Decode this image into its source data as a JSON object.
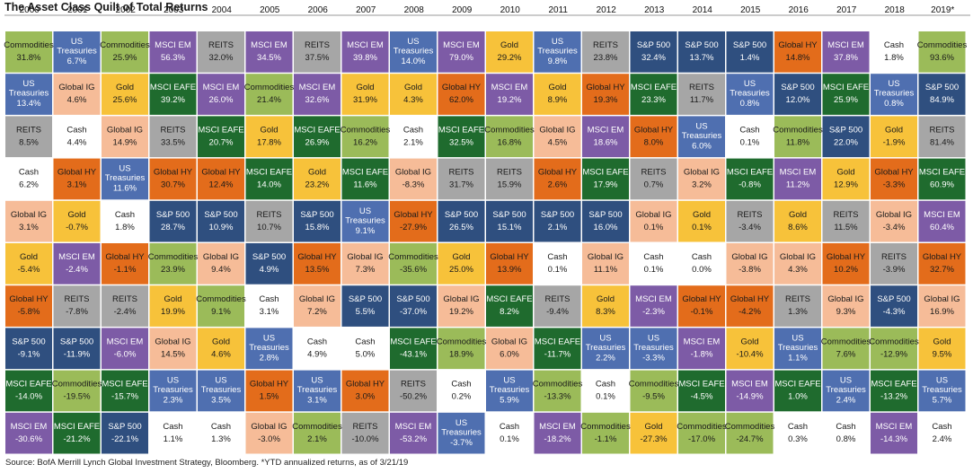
{
  "title": "The Asset Class Quilt of Total Returns",
  "source": "Source: BofA Merrill Lynch Global Investment Strategy, Bloomberg. *YTD annualized returns, as of 3/21/19",
  "colors": {
    "Commodities": "#9bbb59",
    "US Treasuries": "#4f6fb0",
    "MSCI EM": "#7d5ba6",
    "REITS": "#a6a6a6",
    "Gold": "#f7c23a",
    "Cash": "#ffffff",
    "Global HY": "#e36c1b",
    "Global IG": "#f6bc98",
    "MSCI EAFE": "#1f6b2e",
    "S&P 500": "#2f4f7f"
  },
  "text_colors": {
    "Commodities": "#1a1a1a",
    "US Treasuries": "#ffffff",
    "MSCI EM": "#ffffff",
    "REITS": "#1a1a1a",
    "Gold": "#1a1a1a",
    "Cash": "#1a1a1a",
    "Global HY": "#1a1a1a",
    "Global IG": "#1a1a1a",
    "MSCI EAFE": "#ffffff",
    "S&P 500": "#ffffff"
  },
  "chart_data": {
    "type": "table",
    "title": "The Asset Class Quilt of Total Returns",
    "years": [
      "2000",
      "2001",
      "2002",
      "2003",
      "2004",
      "2005",
      "2006",
      "2007",
      "2008",
      "2009",
      "2010",
      "2011",
      "2012",
      "2013",
      "2014",
      "2015",
      "2016",
      "2017",
      "2018",
      "2019*"
    ],
    "columns": [
      [
        [
          "Commodities",
          "31.8%"
        ],
        [
          "US Treasuries",
          "13.4%"
        ],
        [
          "REITS",
          "8.5%"
        ],
        [
          "Cash",
          "6.2%"
        ],
        [
          "Global IG",
          "3.1%"
        ],
        [
          "Gold",
          "-5.4%"
        ],
        [
          "Global HY",
          "-5.8%"
        ],
        [
          "S&P 500",
          "-9.1%"
        ],
        [
          "MSCI EAFE",
          "-14.0%"
        ],
        [
          "MSCI EM",
          "-30.6%"
        ]
      ],
      [
        [
          "US Treasuries",
          "6.7%"
        ],
        [
          "Global IG",
          "4.6%"
        ],
        [
          "Cash",
          "4.4%"
        ],
        [
          "Global HY",
          "3.1%"
        ],
        [
          "Gold",
          "-0.7%"
        ],
        [
          "MSCI EM",
          "-2.4%"
        ],
        [
          "REITS",
          "-7.8%"
        ],
        [
          "S&P 500",
          "-11.9%"
        ],
        [
          "Commodities",
          "-19.5%"
        ],
        [
          "MSCI EAFE",
          "-21.2%"
        ]
      ],
      [
        [
          "Commodities",
          "25.9%"
        ],
        [
          "Gold",
          "25.6%"
        ],
        [
          "Global IG",
          "14.9%"
        ],
        [
          "US Treasuries",
          "11.6%"
        ],
        [
          "Cash",
          "1.8%"
        ],
        [
          "Global HY",
          "-1.1%"
        ],
        [
          "REITS",
          "-2.4%"
        ],
        [
          "MSCI EM",
          "-6.0%"
        ],
        [
          "MSCI EAFE",
          "-15.7%"
        ],
        [
          "S&P 500",
          "-22.1%"
        ]
      ],
      [
        [
          "MSCI EM",
          "56.3%"
        ],
        [
          "MSCI EAFE",
          "39.2%"
        ],
        [
          "REITS",
          "33.5%"
        ],
        [
          "Global HY",
          "30.7%"
        ],
        [
          "S&P 500",
          "28.7%"
        ],
        [
          "Commodities",
          "23.9%"
        ],
        [
          "Gold",
          "19.9%"
        ],
        [
          "Global IG",
          "14.5%"
        ],
        [
          "US Treasuries",
          "2.3%"
        ],
        [
          "Cash",
          "1.1%"
        ]
      ],
      [
        [
          "REITS",
          "32.0%"
        ],
        [
          "MSCI EM",
          "26.0%"
        ],
        [
          "MSCI EAFE",
          "20.7%"
        ],
        [
          "Global HY",
          "12.4%"
        ],
        [
          "S&P 500",
          "10.9%"
        ],
        [
          "Global IG",
          "9.4%"
        ],
        [
          "Commodities",
          "9.1%"
        ],
        [
          "Gold",
          "4.6%"
        ],
        [
          "US Treasuries",
          "3.5%"
        ],
        [
          "Cash",
          "1.3%"
        ]
      ],
      [
        [
          "MSCI EM",
          "34.5%"
        ],
        [
          "Commodities",
          "21.4%"
        ],
        [
          "Gold",
          "17.8%"
        ],
        [
          "MSCI EAFE",
          "14.0%"
        ],
        [
          "REITS",
          "10.7%"
        ],
        [
          "S&P 500",
          "4.9%"
        ],
        [
          "Cash",
          "3.1%"
        ],
        [
          "US Treasuries",
          "2.8%"
        ],
        [
          "Global HY",
          "1.5%"
        ],
        [
          "Global IG",
          "-3.0%"
        ]
      ],
      [
        [
          "REITS",
          "37.5%"
        ],
        [
          "MSCI EM",
          "32.6%"
        ],
        [
          "MSCI EAFE",
          "26.9%"
        ],
        [
          "Gold",
          "23.2%"
        ],
        [
          "S&P 500",
          "15.8%"
        ],
        [
          "Global HY",
          "13.5%"
        ],
        [
          "Global IG",
          "7.2%"
        ],
        [
          "Cash",
          "4.9%"
        ],
        [
          "US Treasuries",
          "3.1%"
        ],
        [
          "Commodities",
          "2.1%"
        ]
      ],
      [
        [
          "MSCI EM",
          "39.8%"
        ],
        [
          "Gold",
          "31.9%"
        ],
        [
          "Commodities",
          "16.2%"
        ],
        [
          "MSCI EAFE",
          "11.6%"
        ],
        [
          "US Treasuries",
          "9.1%"
        ],
        [
          "Global IG",
          "7.3%"
        ],
        [
          "S&P 500",
          "5.5%"
        ],
        [
          "Cash",
          "5.0%"
        ],
        [
          "Global HY",
          "3.0%"
        ],
        [
          "REITS",
          "-10.0%"
        ]
      ],
      [
        [
          "US Treasuries",
          "14.0%"
        ],
        [
          "Gold",
          "4.3%"
        ],
        [
          "Cash",
          "2.1%"
        ],
        [
          "Global IG",
          "-8.3%"
        ],
        [
          "Global HY",
          "-27.9%"
        ],
        [
          "Commodities",
          "-35.6%"
        ],
        [
          "S&P 500",
          "-37.0%"
        ],
        [
          "MSCI EAFE",
          "-43.1%"
        ],
        [
          "REITS",
          "-50.2%"
        ],
        [
          "MSCI EM",
          "-53.2%"
        ]
      ],
      [
        [
          "MSCI EM",
          "79.0%"
        ],
        [
          "Global HY",
          "62.0%"
        ],
        [
          "MSCI EAFE",
          "32.5%"
        ],
        [
          "REITS",
          "31.7%"
        ],
        [
          "S&P 500",
          "26.5%"
        ],
        [
          "Gold",
          "25.0%"
        ],
        [
          "Global IG",
          "19.2%"
        ],
        [
          "Commodities",
          "18.9%"
        ],
        [
          "Cash",
          "0.2%"
        ],
        [
          "US Treasuries",
          "-3.7%"
        ]
      ],
      [
        [
          "Gold",
          "29.2%"
        ],
        [
          "MSCI EM",
          "19.2%"
        ],
        [
          "Commodities",
          "16.8%"
        ],
        [
          "REITS",
          "15.9%"
        ],
        [
          "S&P 500",
          "15.1%"
        ],
        [
          "Global HY",
          "13.9%"
        ],
        [
          "MSCI EAFE",
          "8.2%"
        ],
        [
          "Global IG",
          "6.0%"
        ],
        [
          "US Treasuries",
          "5.9%"
        ],
        [
          "Cash",
          "0.1%"
        ]
      ],
      [
        [
          "US Treasuries",
          "9.8%"
        ],
        [
          "Gold",
          "8.9%"
        ],
        [
          "Global IG",
          "4.5%"
        ],
        [
          "Global HY",
          "2.6%"
        ],
        [
          "S&P 500",
          "2.1%"
        ],
        [
          "Cash",
          "0.1%"
        ],
        [
          "REITS",
          "-9.4%"
        ],
        [
          "MSCI EAFE",
          "-11.7%"
        ],
        [
          "Commodities",
          "-13.3%"
        ],
        [
          "MSCI EM",
          "-18.2%"
        ]
      ],
      [
        [
          "REITS",
          "23.8%"
        ],
        [
          "Global HY",
          "19.3%"
        ],
        [
          "MSCI EM",
          "18.6%"
        ],
        [
          "MSCI EAFE",
          "17.9%"
        ],
        [
          "S&P 500",
          "16.0%"
        ],
        [
          "Global IG",
          "11.1%"
        ],
        [
          "Gold",
          "8.3%"
        ],
        [
          "US Treasuries",
          "2.2%"
        ],
        [
          "Cash",
          "0.1%"
        ],
        [
          "Commodities",
          "-1.1%"
        ]
      ],
      [
        [
          "S&P 500",
          "32.4%"
        ],
        [
          "MSCI EAFE",
          "23.3%"
        ],
        [
          "Global HY",
          "8.0%"
        ],
        [
          "REITS",
          "0.7%"
        ],
        [
          "Global IG",
          "0.1%"
        ],
        [
          "Cash",
          "0.1%"
        ],
        [
          "MSCI EM",
          "-2.3%"
        ],
        [
          "US Treasuries",
          "-3.3%"
        ],
        [
          "Commodities",
          "-9.5%"
        ],
        [
          "Gold",
          "-27.3%"
        ]
      ],
      [
        [
          "S&P 500",
          "13.7%"
        ],
        [
          "REITS",
          "11.7%"
        ],
        [
          "US Treasuries",
          "6.0%"
        ],
        [
          "Global IG",
          "3.2%"
        ],
        [
          "Gold",
          "0.1%"
        ],
        [
          "Cash",
          "0.0%"
        ],
        [
          "Global HY",
          "-0.1%"
        ],
        [
          "MSCI EM",
          "-1.8%"
        ],
        [
          "MSCI EAFE",
          "-4.5%"
        ],
        [
          "Commodities",
          "-17.0%"
        ]
      ],
      [
        [
          "S&P 500",
          "1.4%"
        ],
        [
          "US Treasuries",
          "0.8%"
        ],
        [
          "Cash",
          "0.1%"
        ],
        [
          "MSCI EAFE",
          "-0.8%"
        ],
        [
          "REITS",
          "-3.4%"
        ],
        [
          "Global IG",
          "-3.8%"
        ],
        [
          "Global HY",
          "-4.2%"
        ],
        [
          "Gold",
          "-10.4%"
        ],
        [
          "MSCI EM",
          "-14.9%"
        ],
        [
          "Commodities",
          "-24.7%"
        ]
      ],
      [
        [
          "Global HY",
          "14.8%"
        ],
        [
          "S&P 500",
          "12.0%"
        ],
        [
          "Commodities",
          "11.8%"
        ],
        [
          "MSCI EM",
          "11.2%"
        ],
        [
          "Gold",
          "8.6%"
        ],
        [
          "Global IG",
          "4.3%"
        ],
        [
          "REITS",
          "1.3%"
        ],
        [
          "US Treasuries",
          "1.1%"
        ],
        [
          "MSCI EAFE",
          "1.0%"
        ],
        [
          "Cash",
          "0.3%"
        ]
      ],
      [
        [
          "MSCI EM",
          "37.8%"
        ],
        [
          "MSCI EAFE",
          "25.9%"
        ],
        [
          "S&P 500",
          "22.0%"
        ],
        [
          "Gold",
          "12.9%"
        ],
        [
          "REITS",
          "11.5%"
        ],
        [
          "Global HY",
          "10.2%"
        ],
        [
          "Global IG",
          "9.3%"
        ],
        [
          "Commodities",
          "7.6%"
        ],
        [
          "US Treasuries",
          "2.4%"
        ],
        [
          "Cash",
          "0.8%"
        ]
      ],
      [
        [
          "Cash",
          "1.8%"
        ],
        [
          "US Treasuries",
          "0.8%"
        ],
        [
          "Gold",
          "-1.9%"
        ],
        [
          "Global HY",
          "-3.3%"
        ],
        [
          "Global IG",
          "-3.4%"
        ],
        [
          "REITS",
          "-3.9%"
        ],
        [
          "S&P 500",
          "-4.3%"
        ],
        [
          "Commodities",
          "-12.9%"
        ],
        [
          "MSCI EAFE",
          "-13.2%"
        ],
        [
          "MSCI EM",
          "-14.3%"
        ]
      ],
      [
        [
          "Commodities",
          "93.6%"
        ],
        [
          "S&P 500",
          "84.9%"
        ],
        [
          "REITS",
          "81.4%"
        ],
        [
          "MSCI EAFE",
          "60.9%"
        ],
        [
          "MSCI EM",
          "60.4%"
        ],
        [
          "Global HY",
          "32.7%"
        ],
        [
          "Global IG",
          "16.9%"
        ],
        [
          "Gold",
          "9.5%"
        ],
        [
          "US Treasuries",
          "5.7%"
        ],
        [
          "Cash",
          "2.4%"
        ]
      ]
    ]
  }
}
